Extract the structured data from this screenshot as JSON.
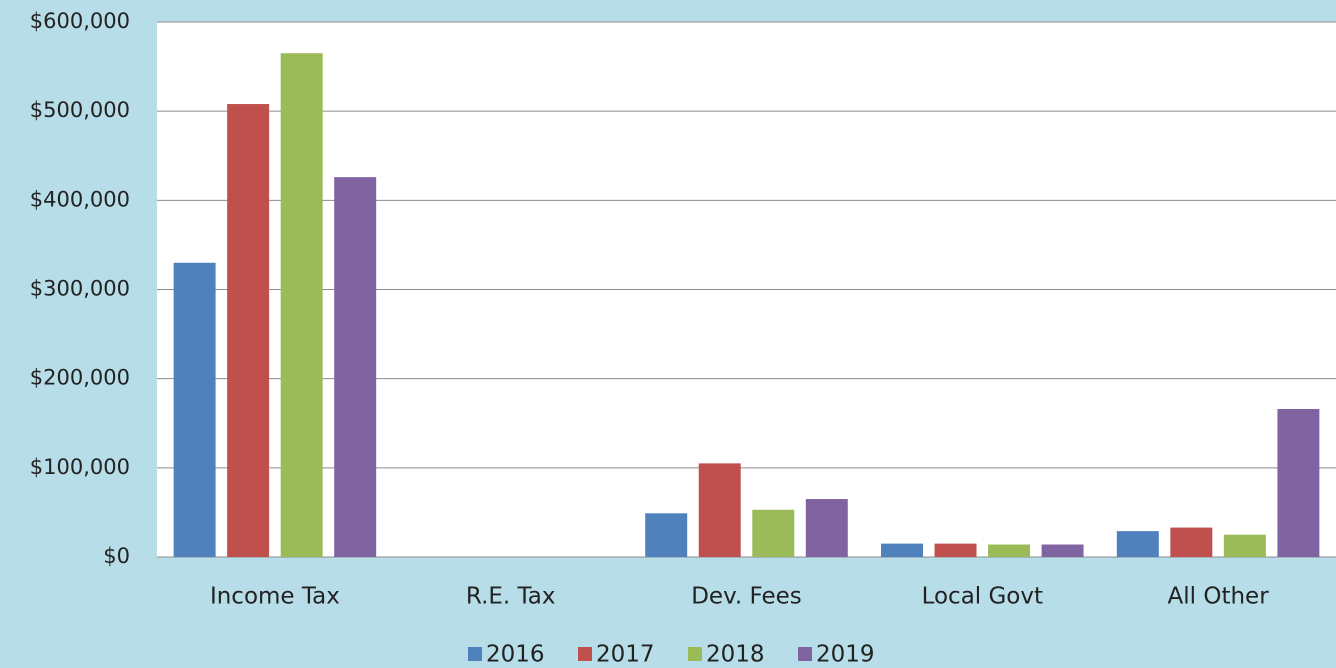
{
  "chart_data": {
    "type": "bar",
    "categories": [
      "Income Tax",
      "R.E. Tax",
      "Dev. Fees",
      "Local Govt",
      "All Other"
    ],
    "series": [
      {
        "name": "2016",
        "color": "#4f81bd",
        "values": [
          330000,
          0,
          49000,
          15000,
          29000
        ]
      },
      {
        "name": "2017",
        "color": "#c0504d",
        "values": [
          508000,
          0,
          105000,
          15000,
          33000
        ]
      },
      {
        "name": "2018",
        "color": "#9bbb59",
        "values": [
          565000,
          0,
          53000,
          14000,
          25000
        ]
      },
      {
        "name": "2019",
        "color": "#8064a2",
        "values": [
          426000,
          0,
          65000,
          14000,
          166000
        ]
      }
    ],
    "ylim": [
      0,
      600000
    ],
    "yticks": [
      {
        "value": 0,
        "label": "$0"
      },
      {
        "value": 100000,
        "label": "$100,000"
      },
      {
        "value": 200000,
        "label": "$200,000"
      },
      {
        "value": 300000,
        "label": "$300,000"
      },
      {
        "value": 400000,
        "label": "$400,000"
      },
      {
        "value": 500000,
        "label": "$500,000"
      },
      {
        "value": 600000,
        "label": "$600,000"
      }
    ],
    "grid": true,
    "legend": "bottom"
  }
}
